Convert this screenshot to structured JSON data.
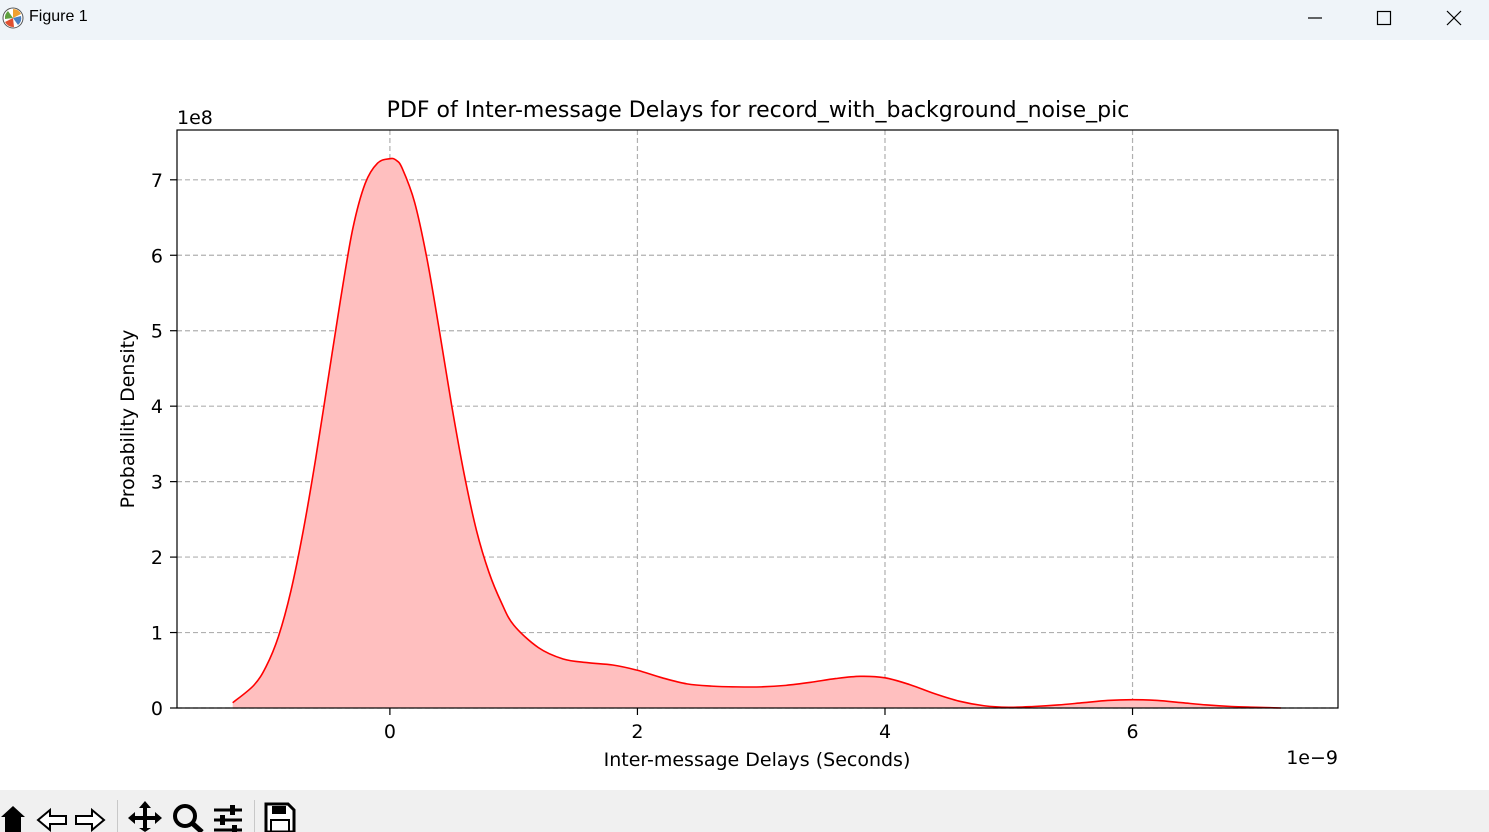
{
  "window": {
    "title": "Figure 1",
    "controls": [
      "minimize-icon",
      "maximize-icon",
      "close-icon"
    ]
  },
  "toolbar": {
    "tools": [
      "home-icon",
      "back-arrow-icon",
      "forward-arrow-icon",
      "pan-icon",
      "zoom-icon",
      "configure-subplots-icon",
      "save-icon"
    ]
  },
  "chart_data": {
    "type": "area",
    "title": "PDF of Inter-message Delays for record_with_background_noise_pic",
    "xlabel": "Inter-message Delays (Seconds)",
    "ylabel": "Probability Density",
    "x_offset_label": "1e−9",
    "y_offset_label": "1e8",
    "x_scale": 1e-09,
    "y_scale": 100000000.0,
    "xlim": [
      -1.72,
      7.66
    ],
    "ylim": [
      0,
      7.66
    ],
    "xticks": [
      0,
      2,
      4,
      6
    ],
    "yticks": [
      0,
      1,
      2,
      3,
      4,
      5,
      6,
      7
    ],
    "grid": true,
    "grid_style": "dashed",
    "line_color": "#ff0000",
    "fill_color": "#ffbfbf",
    "series": [
      {
        "x": [
          -1.27,
          -1.1,
          -1.0,
          -0.9,
          -0.8,
          -0.7,
          -0.6,
          -0.5,
          -0.4,
          -0.3,
          -0.2,
          -0.1,
          0.0,
          0.05,
          0.1,
          0.2,
          0.3,
          0.4,
          0.5,
          0.6,
          0.7,
          0.8,
          0.9,
          1.0,
          1.2,
          1.4,
          1.6,
          1.8,
          2.0,
          2.2,
          2.4,
          2.6,
          2.8,
          3.0,
          3.2,
          3.4,
          3.6,
          3.8,
          4.0,
          4.2,
          4.4,
          4.6,
          4.8,
          5.0,
          5.2,
          5.4,
          5.6,
          5.8,
          6.0,
          6.2,
          6.4,
          6.6,
          6.8,
          7.0,
          7.2
        ],
        "y": [
          0.07,
          0.3,
          0.55,
          0.95,
          1.55,
          2.35,
          3.3,
          4.35,
          5.4,
          6.35,
          6.95,
          7.22,
          7.28,
          7.26,
          7.15,
          6.7,
          5.95,
          5.0,
          4.0,
          3.1,
          2.35,
          1.8,
          1.4,
          1.1,
          0.8,
          0.65,
          0.6,
          0.57,
          0.5,
          0.4,
          0.32,
          0.29,
          0.28,
          0.28,
          0.3,
          0.34,
          0.39,
          0.42,
          0.4,
          0.31,
          0.19,
          0.09,
          0.03,
          0.01,
          0.02,
          0.04,
          0.07,
          0.1,
          0.11,
          0.1,
          0.07,
          0.04,
          0.02,
          0.01,
          0.0
        ]
      }
    ]
  }
}
